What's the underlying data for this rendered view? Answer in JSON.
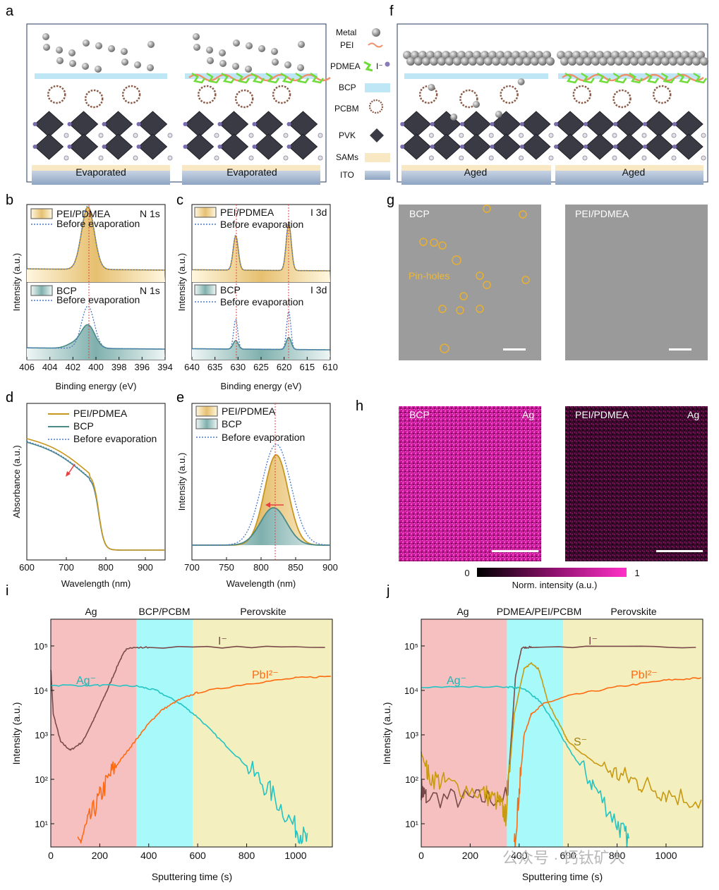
{
  "panels": {
    "a": {
      "letter": "a",
      "labels": [
        "Evaporated",
        "Evaporated"
      ]
    },
    "f": {
      "letter": "f",
      "labels": [
        "Aged",
        "Aged"
      ]
    },
    "legend": {
      "metal": "Metal",
      "pei": "PEI",
      "pdmea": "PDMEA",
      "iodide": "I⁻",
      "bcp": "BCP",
      "pcbm": "PCBM",
      "pvk": "PVK",
      "sams": "SAMs",
      "ito": "ITO"
    },
    "b": {
      "letter": "b",
      "top_legend": [
        "PEI/PDMEA",
        "Before evaporation"
      ],
      "top_tag": "N 1s",
      "bot_legend": [
        "BCP",
        "Before evaporation"
      ],
      "bot_tag": "N 1s",
      "ylabel": "Intensity (a.u.)",
      "xlabel": "Binding energy (eV)",
      "xticks": [
        "406",
        "404",
        "402",
        "400",
        "398",
        "396",
        "394"
      ]
    },
    "c": {
      "letter": "c",
      "top_legend": [
        "PEI/PDMEA",
        "Before evaporation"
      ],
      "top_tag": "I 3d",
      "bot_legend": [
        "BCP",
        "Before evaporation"
      ],
      "bot_tag": "I 3d",
      "ylabel": "Intensity (a.u.)",
      "xlabel": "Binding energy (eV)",
      "xticks": [
        "640",
        "635",
        "630",
        "625",
        "620",
        "615",
        "610"
      ]
    },
    "d": {
      "letter": "d",
      "legend": [
        "PEI/PDMEA",
        "BCP",
        "Before evaporation"
      ],
      "ylabel": "Absorbance (a.u.)",
      "xlabel": "Wavelength (nm)",
      "xticks": [
        "600",
        "700",
        "800",
        "900"
      ]
    },
    "e": {
      "letter": "e",
      "legend": [
        "PEI/PDMEA",
        "BCP",
        "Before evaporation"
      ],
      "ylabel": "Intensity (a.u.)",
      "xlabel": "Wavelength (nm)",
      "xticks": [
        "700",
        "750",
        "800",
        "850",
        "900"
      ]
    },
    "g": {
      "letter": "g",
      "left": "BCP",
      "right": "PEI/PDMEA",
      "annotation": "Pin-holes"
    },
    "h": {
      "letter": "h",
      "left": "BCP",
      "right": "PEI/PDMEA",
      "element": "Ag",
      "cbar_min": "0",
      "cbar_max": "1",
      "cbar_label": "Norm. intensity (a.u.)"
    },
    "i": {
      "letter": "i",
      "regions": [
        "Ag",
        "BCP/PCBM",
        "Perovskite"
      ],
      "series_labels": [
        "I⁻",
        "Ag⁻",
        "PbI²⁻"
      ],
      "ylabel": "Intensity (a.u.)",
      "xlabel": "Sputtering time (s)",
      "xticks": [
        "0",
        "200",
        "400",
        "600",
        "800",
        "1000"
      ],
      "yticks": [
        "10¹",
        "10²",
        "10³",
        "10⁴",
        "10⁵"
      ]
    },
    "j": {
      "letter": "j",
      "regions": [
        "Ag",
        "PDMEA/PEI/PCBM",
        "Perovskite"
      ],
      "series_labels": [
        "I⁻",
        "Ag⁻",
        "PbI²⁻",
        "S⁻"
      ],
      "ylabel": "Intensity (a.u.)",
      "xlabel": "Sputtering time (s)",
      "xticks": [
        "0",
        "200",
        "400",
        "600",
        "800",
        "1000"
      ],
      "yticks": [
        "10¹",
        "10²",
        "10³",
        "10⁴",
        "10⁵"
      ]
    }
  },
  "watermark": "公众号 · 钙钛矿人",
  "colors": {
    "pei": "#c8961e",
    "bcp": "#4a8a88",
    "before": "#4a78c8",
    "ag": "#22c4c4",
    "iodide": "#7a4a4a",
    "pbi": "#ff6a10",
    "s": "#c89a10",
    "ag_region": "#f7c0c0",
    "mid_region": "#a8fafa",
    "pvk_region": "#f3efbe"
  },
  "chart_data": [
    {
      "panel": "b",
      "type": "line",
      "x_range": [
        406,
        394
      ],
      "series": [
        {
          "name": "PEI/PDMEA",
          "peak": 400.7
        },
        {
          "name": "BCP",
          "peak": 400.7
        },
        {
          "name": "Before evaporation",
          "peak": 400.7
        }
      ]
    },
    {
      "panel": "c",
      "type": "line",
      "x_range": [
        640,
        610
      ],
      "series": [
        {
          "name": "PEI/PDMEA",
          "peaks": [
            630.5,
            619.0
          ]
        },
        {
          "name": "BCP",
          "peaks": [
            630.5,
            619.0
          ]
        },
        {
          "name": "Before evaporation",
          "peaks": [
            630.5,
            619.0
          ]
        }
      ]
    },
    {
      "panel": "d",
      "type": "line",
      "x_range": [
        600,
        950
      ],
      "edge_nm": 780,
      "series": [
        {
          "name": "PEI/PDMEA"
        },
        {
          "name": "BCP"
        },
        {
          "name": "Before evaporation"
        }
      ]
    },
    {
      "panel": "e",
      "type": "line",
      "x_range": [
        700,
        900
      ],
      "series": [
        {
          "name": "PEI/PDMEA",
          "peak_nm": 822,
          "rel_height": 0.86
        },
        {
          "name": "BCP",
          "peak_nm": 818,
          "rel_height": 0.36
        },
        {
          "name": "Before evaporation",
          "peak_nm": 822,
          "rel_height": 1.0
        }
      ]
    },
    {
      "panel": "i",
      "type": "line",
      "x_range": [
        0,
        1150
      ],
      "y_range": [
        3,
        400000
      ],
      "y_scale": "log",
      "regions": [
        {
          "name": "Ag",
          "x": [
            0,
            350
          ]
        },
        {
          "name": "BCP/PCBM",
          "x": [
            350,
            580
          ]
        },
        {
          "name": "Perovskite",
          "x": [
            580,
            1150
          ]
        }
      ],
      "series": [
        {
          "name": "I⁻",
          "points": [
            [
              0,
              30000
            ],
            [
              10,
              3000
            ],
            [
              40,
              700
            ],
            [
              80,
              450
            ],
            [
              130,
              700
            ],
            [
              180,
              2500
            ],
            [
              230,
              10000
            ],
            [
              280,
              45000
            ],
            [
              310,
              90000
            ],
            [
              400,
              93000
            ],
            [
              1150,
              95000
            ]
          ]
        },
        {
          "name": "Ag⁻",
          "points": [
            [
              0,
              13000
            ],
            [
              200,
              13000
            ],
            [
              350,
              12500
            ],
            [
              430,
              10000
            ],
            [
              530,
              5000
            ],
            [
              600,
              2500
            ],
            [
              700,
              700
            ],
            [
              800,
              200
            ],
            [
              900,
              50
            ],
            [
              1000,
              8
            ],
            [
              1050,
              4
            ]
          ]
        },
        {
          "name": "PbI²⁻",
          "points": [
            [
              110,
              3
            ],
            [
              150,
              10
            ],
            [
              200,
              40
            ],
            [
              250,
              150
            ],
            [
              300,
              350
            ],
            [
              350,
              800
            ],
            [
              400,
              1800
            ],
            [
              450,
              3500
            ],
            [
              520,
              6000
            ],
            [
              600,
              9000
            ],
            [
              800,
              14000
            ],
            [
              1000,
              19000
            ],
            [
              1150,
              21000
            ]
          ]
        }
      ]
    },
    {
      "panel": "j",
      "type": "line",
      "x_range": [
        0,
        1150
      ],
      "y_range": [
        3,
        400000
      ],
      "y_scale": "log",
      "regions": [
        {
          "name": "Ag",
          "x": [
            0,
            350
          ]
        },
        {
          "name": "PDMEA/PEI/PCBM",
          "x": [
            350,
            580
          ]
        },
        {
          "name": "Perovskite",
          "x": [
            580,
            1150
          ]
        }
      ],
      "series": [
        {
          "name": "I⁻",
          "points": [
            [
              0,
              60
            ],
            [
              20,
              40
            ],
            [
              200,
              35
            ],
            [
              350,
              40
            ],
            [
              365,
              500
            ],
            [
              385,
              20000
            ],
            [
              410,
              90000
            ],
            [
              450,
              95000
            ],
            [
              1150,
              95000
            ]
          ]
        },
        {
          "name": "Ag⁻",
          "points": [
            [
              0,
              12000
            ],
            [
              350,
              12000
            ],
            [
              420,
              11000
            ],
            [
              480,
              6000
            ],
            [
              540,
              2000
            ],
            [
              600,
              500
            ],
            [
              700,
              80
            ],
            [
              800,
              10
            ],
            [
              850,
              4
            ]
          ]
        },
        {
          "name": "PbI²⁻",
          "points": [
            [
              380,
              3
            ],
            [
              400,
              50
            ],
            [
              420,
              1000
            ],
            [
              450,
              3000
            ],
            [
              500,
              5000
            ],
            [
              600,
              7500
            ],
            [
              800,
              12000
            ],
            [
              1000,
              17000
            ],
            [
              1150,
              19000
            ]
          ]
        },
        {
          "name": "S⁻",
          "points": [
            [
              0,
              400
            ],
            [
              30,
              120
            ],
            [
              100,
              80
            ],
            [
              250,
              50
            ],
            [
              320,
              30
            ],
            [
              345,
              15
            ],
            [
              380,
              3000
            ],
            [
              420,
              30000
            ],
            [
              450,
              42000
            ],
            [
              480,
              30000
            ],
            [
              520,
              5000
            ],
            [
              570,
              1500
            ],
            [
              600,
              700
            ],
            [
              700,
              250
            ],
            [
              800,
              130
            ],
            [
              900,
              80
            ],
            [
              1000,
              50
            ],
            [
              1150,
              30
            ]
          ]
        }
      ]
    }
  ]
}
